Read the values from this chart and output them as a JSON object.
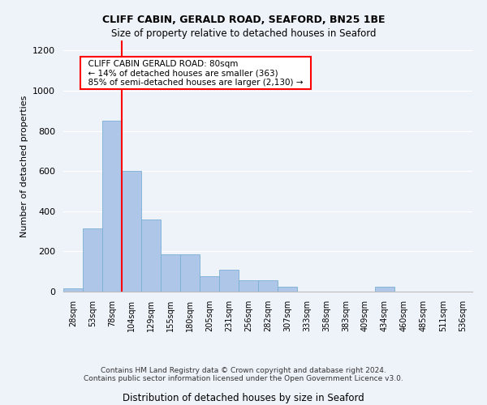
{
  "title1": "CLIFF CABIN, GERALD ROAD, SEAFORD, BN25 1BE",
  "title2": "Size of property relative to detached houses in Seaford",
  "xlabel": "Distribution of detached houses by size in Seaford",
  "ylabel": "Number of detached properties",
  "footnote": "Contains HM Land Registry data © Crown copyright and database right 2024.\nContains public sector information licensed under the Open Government Licence v3.0.",
  "categories": [
    "28sqm",
    "53sqm",
    "78sqm",
    "104sqm",
    "129sqm",
    "155sqm",
    "180sqm",
    "205sqm",
    "231sqm",
    "256sqm",
    "282sqm",
    "307sqm",
    "333sqm",
    "358sqm",
    "383sqm",
    "409sqm",
    "434sqm",
    "460sqm",
    "485sqm",
    "511sqm",
    "536sqm"
  ],
  "values": [
    15,
    315,
    850,
    600,
    360,
    185,
    185,
    75,
    110,
    55,
    55,
    25,
    0,
    0,
    0,
    0,
    25,
    0,
    0,
    0,
    0
  ],
  "bar_color": "#aec6e8",
  "bar_edge_color": "#7aafd4",
  "vline_x": 2.5,
  "vline_color": "red",
  "annotation_text": "  CLIFF CABIN GERALD ROAD: 80sqm  \n  ← 14% of detached houses are smaller (363)  \n  85% of semi-detached houses are larger (2,130) →  ",
  "annotation_box_color": "white",
  "annotation_box_edge": "red",
  "ylim": [
    0,
    1250
  ],
  "yticks": [
    0,
    200,
    400,
    600,
    800,
    1000,
    1200
  ],
  "bg_color": "#eef2f9",
  "plot_bg": "#eef2f9"
}
